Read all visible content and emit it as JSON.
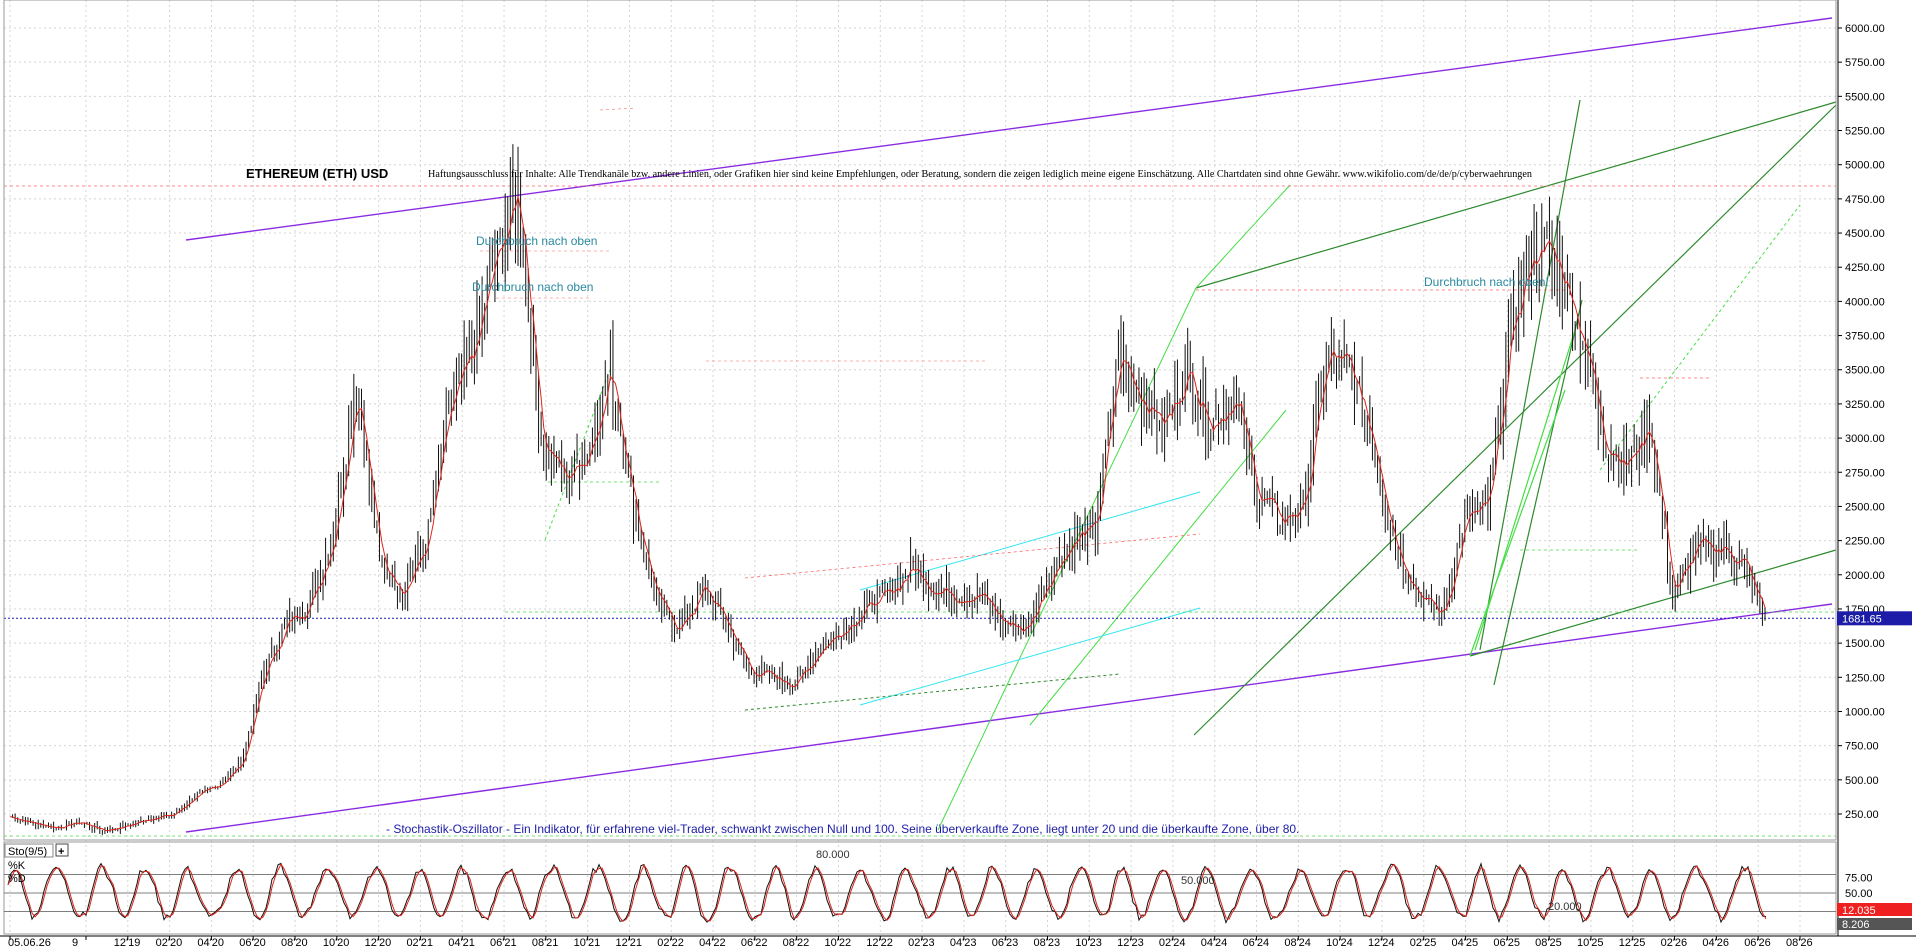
{
  "chart_data": {
    "type": "line",
    "title": "ETHEREUM (ETH) USD",
    "subtitle": "Haftungsausschluss für Inhalte: Alle Trendkanäle bzw. andere Linien, oder Grafiken hier sind keine Empfehlungen, oder Beratung, sondern die zeigen lediglich meine eigene Einschätzung. Alle Chartdaten sind ohne Gewähr. www.wikifolio.com/de/de/p/cyberwaehrungen",
    "annotations": [
      "Durchbruch nach oben",
      "Durchbruch nach oben",
      "Durchbruch nach oben!"
    ],
    "price_axis": {
      "ticks": [
        "6000.00",
        "5750.00",
        "5500.00",
        "5250.00",
        "5000.00",
        "4750.00",
        "4500.00",
        "4250.00",
        "4000.00",
        "3750.00",
        "3500.00",
        "3250.00",
        "3000.00",
        "2750.00",
        "2500.00",
        "2250.00",
        "2000.00",
        "1750.00",
        "1500.00",
        "1250.00",
        "1000.00",
        "750.00",
        "500.00",
        "250.00"
      ],
      "ylim": [
        0,
        6100
      ]
    },
    "x_ticks": [
      "05.06.26",
      "9",
      "12'19",
      "02'20",
      "04'20",
      "06'20",
      "08'20",
      "10'20",
      "12'20",
      "02'21",
      "04'21",
      "06'21",
      "08'21",
      "10'21",
      "12'21",
      "02'22",
      "04'22",
      "06'22",
      "08'22",
      "10'22",
      "12'22",
      "02'23",
      "04'23",
      "06'23",
      "08'23",
      "10'23",
      "12'23",
      "02'24",
      "04'24",
      "06'24",
      "08'24",
      "10'24",
      "12'24",
      "02'25",
      "04'25",
      "06'25",
      "08'25",
      "10'25",
      "12'25",
      "02'26",
      "04'26",
      "06'26",
      "08'26"
    ],
    "current_price": {
      "label": "1681.65",
      "value": 1681.65
    },
    "series": [
      {
        "x": [
          "09'19",
          "12'19",
          "02'20",
          "03'20",
          "04'20",
          "06'20",
          "08'20",
          "09'20",
          "10'20",
          "11'20",
          "12'20",
          "01'21",
          "02'21",
          "03'21",
          "04'21",
          "05'21",
          "06'21",
          "07'21",
          "08'21",
          "09'21",
          "10'21",
          "11'21",
          "12'21",
          "01'22",
          "02'22",
          "03'22",
          "04'22",
          "05'22",
          "06'22",
          "07'22",
          "08'22",
          "09'22",
          "10'22",
          "11'22",
          "12'22",
          "01'23",
          "02'23",
          "03'23",
          "04'23",
          "05'23",
          "06'23",
          "07'23",
          "08'23",
          "09'23",
          "10'23",
          "11'23",
          "12'23",
          "01'24",
          "02'24",
          "03'24",
          "04'24",
          "05'24",
          "06'24",
          "07'24",
          "08'24",
          "09'24",
          "10'24",
          "11'24",
          "12'24",
          "01'25",
          "02'25",
          "03'25",
          "04'25",
          "05'25",
          "06'25",
          "07'25",
          "08'25",
          "09'25",
          "10'25",
          "11'25",
          "12'25",
          "01'26",
          "02'26",
          "03'26",
          "04'26",
          "05'26",
          "06'26"
        ],
        "values": [
          230,
          180,
          150,
          190,
          130,
          160,
          220,
          240,
          380,
          460,
          620,
          1300,
          1650,
          1800,
          2300,
          3400,
          2100,
          1900,
          2200,
          3200,
          3600,
          4300,
          4800,
          3000,
          2700,
          2900,
          3500,
          2500,
          1800,
          1600,
          1900,
          1650,
          1300,
          1250,
          1200,
          1450,
          1600,
          1750,
          1850,
          2050,
          1900,
          1850,
          1850,
          1650,
          1600,
          2000,
          2250,
          2350,
          3600,
          3300,
          3100,
          3500,
          3100,
          3300,
          2600,
          2400,
          2500,
          3600,
          3500,
          3000,
          2200,
          1850,
          1700,
          2400,
          2500,
          3800,
          4400,
          4300,
          3800,
          3000,
          2800,
          3100,
          1850,
          2200,
          2200,
          2100,
          1681
        ]
      }
    ],
    "stochastic": {
      "label": "Sto(9/5)",
      "k_label": "%K",
      "d_label": "%D",
      "ticks": [
        "75.00",
        "50.00",
        "25.00"
      ],
      "levels": [
        {
          "label": "80.000",
          "value": 80
        },
        {
          "label": "50.000",
          "value": 50
        },
        {
          "label": "20.000",
          "value": 20
        }
      ],
      "k_value": {
        "label": "12.035",
        "value": 12.035
      },
      "d_value": {
        "label": "8.206",
        "value": 8.206
      },
      "note": "- Stochastik-Oszillator - Ein Indikator, für erfahrene viel-Trader, schwankt zwischen Null und 100. Seine überverkaufte Zone, liegt unter 20 und die überkaufte Zone, über 80."
    },
    "colors": {
      "candle": "#111111",
      "ma": "#e0241a",
      "channel": "#8a2be2",
      "trend_dark": "#2d8a2d",
      "trend_light": "#44dd44",
      "cyan": "#33e6f0",
      "level_red": "#ff6666",
      "price_line": "#1c1ca8",
      "badge": "#1c1ca8",
      "badge_k": "#ee2020"
    }
  }
}
